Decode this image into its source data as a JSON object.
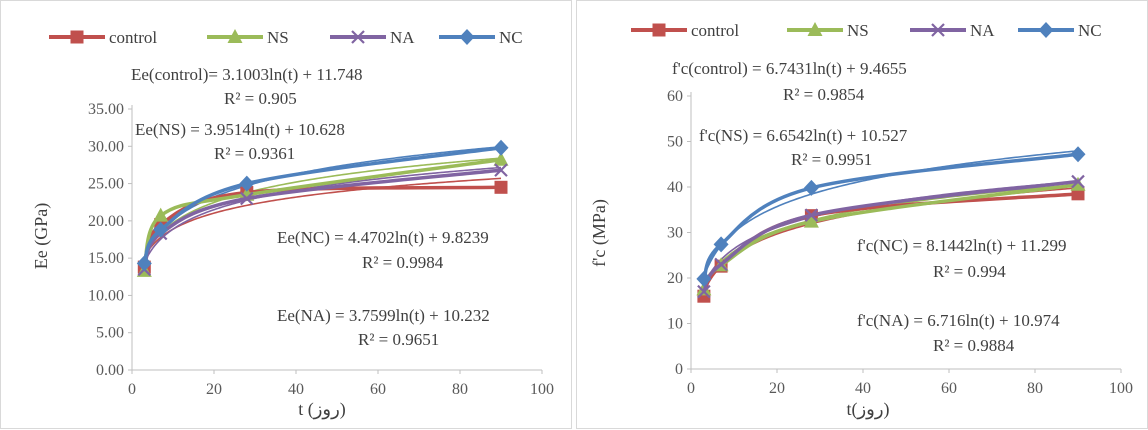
{
  "chart_data": [
    {
      "type": "scatter",
      "title": "",
      "xlabel": "t (روز)",
      "ylabel": "Ee  (GPa)",
      "xlim": [
        0,
        100
      ],
      "ylim": [
        0,
        35
      ],
      "xticks": [
        "0",
        "20",
        "40",
        "60",
        "80",
        "100"
      ],
      "yticks": [
        "0.00",
        "5.00",
        "10.00",
        "15.00",
        "20.00",
        "25.00",
        "30.00",
        "35.00"
      ],
      "legend_position": "top",
      "series": [
        {
          "name": "control",
          "color": "#C0504D",
          "marker": "square",
          "x": [
            3,
            7,
            28,
            90
          ],
          "y": [
            13.8,
            19.5,
            23.8,
            24.5
          ],
          "fit": {
            "a": 3.1003,
            "b": 11.748
          },
          "equation": "Ee(control)= 3.1003ln(t) + 11.748",
          "r2": "R² = 0.905"
        },
        {
          "name": "NS",
          "color": "#9BBB59",
          "marker": "triangle",
          "x": [
            3,
            7,
            28,
            90
          ],
          "y": [
            13.3,
            20.7,
            23.5,
            28.2
          ],
          "fit": {
            "a": 3.9514,
            "b": 10.628
          },
          "equation": "Ee(NS) = 3.9514ln(t) + 10.628",
          "r2": "R² = 0.9361"
        },
        {
          "name": "NA",
          "color": "#8064A2",
          "marker": "x",
          "x": [
            3,
            7,
            28,
            90
          ],
          "y": [
            13.5,
            18.3,
            23.0,
            26.8
          ],
          "fit": {
            "a": 3.7599,
            "b": 10.232
          },
          "equation": "Ee(NA) = 3.7599ln(t) + 10.232",
          "r2": "R² = 0.9651"
        },
        {
          "name": "NC",
          "color": "#4F81BD",
          "marker": "diamond",
          "x": [
            3,
            7,
            28,
            90
          ],
          "y": [
            14.3,
            18.8,
            25.0,
            29.8
          ],
          "fit": {
            "a": 4.4702,
            "b": 9.8239
          },
          "equation": "Ee(NC) = 4.4702ln(t) + 9.8239",
          "r2": "R² = 0.9984"
        }
      ]
    },
    {
      "type": "scatter",
      "title": "",
      "xlabel": "t(روز)",
      "ylabel": "f'c (MPa)",
      "xlim": [
        0,
        100
      ],
      "ylim": [
        0,
        60
      ],
      "xticks": [
        "0",
        "20",
        "40",
        "60",
        "80",
        "100"
      ],
      "yticks": [
        "0",
        "10",
        "20",
        "30",
        "40",
        "50",
        "60"
      ],
      "legend_position": "top",
      "series": [
        {
          "name": "control",
          "color": "#C0504D",
          "marker": "square",
          "x": [
            3,
            7,
            28,
            90
          ],
          "y": [
            16.0,
            22.6,
            33.7,
            38.5
          ],
          "fit": {
            "a": 6.7431,
            "b": 9.4655
          },
          "equation": "f'c(control) = 6.7431ln(t) + 9.4655",
          "r2": "R² = 0.9854"
        },
        {
          "name": "NS",
          "color": "#9BBB59",
          "marker": "triangle",
          "x": [
            3,
            7,
            28,
            90
          ],
          "y": [
            17.5,
            22.8,
            32.4,
            40.5
          ],
          "fit": {
            "a": 6.6542,
            "b": 10.527
          },
          "equation": "f'c(NS) = 6.6542ln(t) + 10.527",
          "r2": "R² = 0.9951"
        },
        {
          "name": "NA",
          "color": "#8064A2",
          "marker": "x",
          "x": [
            3,
            7,
            28,
            90
          ],
          "y": [
            17.0,
            23.0,
            33.8,
            41.2
          ],
          "fit": {
            "a": 6.716,
            "b": 10.974
          },
          "equation": "f'c(NA) = 6.716ln(t) + 10.974",
          "r2": "R² = 0.9884"
        },
        {
          "name": "NC",
          "color": "#4F81BD",
          "marker": "diamond",
          "x": [
            3,
            7,
            28,
            90
          ],
          "y": [
            19.8,
            27.4,
            39.8,
            47.2
          ],
          "fit": {
            "a": 8.1442,
            "b": 11.299
          },
          "equation": "f'c(NC) = 8.1442ln(t) + 11.299",
          "r2": "R² = 0.994"
        }
      ]
    }
  ]
}
